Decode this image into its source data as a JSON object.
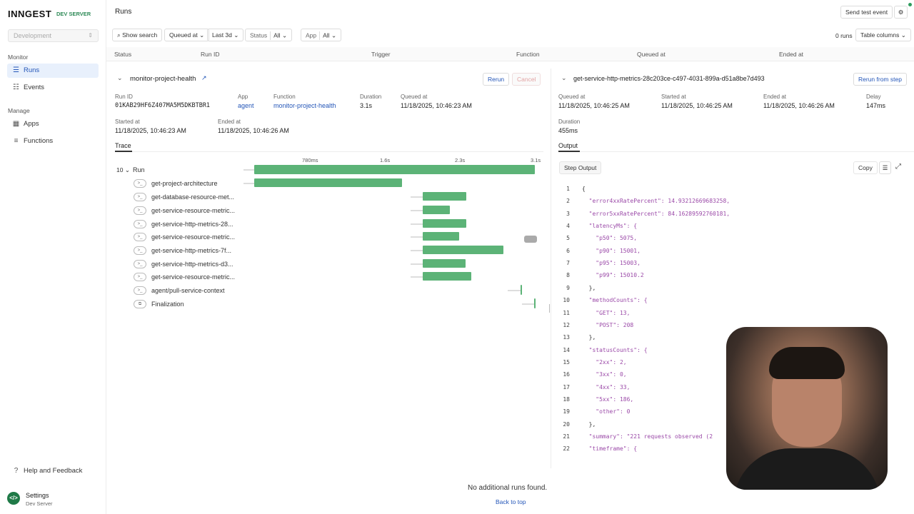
{
  "brand": {
    "logo": "INNGEST",
    "sub": "DEV SERVER"
  },
  "env_select": {
    "value": "Development"
  },
  "sidebar": {
    "monitor_label": "Monitor",
    "manage_label": "Manage",
    "items": [
      {
        "label": "Runs",
        "icon": "list-icon"
      },
      {
        "label": "Events",
        "icon": "events-icon"
      },
      {
        "label": "Apps",
        "icon": "apps-icon"
      },
      {
        "label": "Functions",
        "icon": "functions-icon"
      }
    ],
    "help": "Help and Feedback",
    "settings": "Settings",
    "settings_sub": "Dev Server"
  },
  "header": {
    "title": "Runs",
    "send_test_event": "Send test event"
  },
  "filters": {
    "show_search": "Show search",
    "queued_at": "Queued at",
    "last": "Last 3d",
    "status_label": "Status",
    "status_value": "All",
    "app_label": "App",
    "app_value": "All",
    "runs_count": "0 runs",
    "table_columns": "Table columns"
  },
  "columns": [
    "Status",
    "Run ID",
    "Trigger",
    "Function",
    "Queued at",
    "Ended at"
  ],
  "run": {
    "function_name": "monitor-project-health",
    "rerun": "Rerun",
    "cancel": "Cancel",
    "run_id_label": "Run ID",
    "run_id": "01KAB29HF6Z407MA5M5DKBTBR1",
    "app_label": "App",
    "app": "agent",
    "function_label": "Function",
    "function": "monitor-project-health",
    "duration_label": "Duration",
    "duration": "3.1s",
    "queued_label": "Queued at",
    "queued": "11/18/2025, 10:46:23 AM",
    "started_label": "Started at",
    "started": "11/18/2025, 10:46:23 AM",
    "ended_label": "Ended at",
    "ended": "11/18/2025, 10:46:26 AM"
  },
  "trace": {
    "tab": "Trace",
    "ticks": [
      "780ms",
      "1.6s",
      "2.3s",
      "3.1s"
    ],
    "run_count": "10",
    "run_label": "Run",
    "steps": [
      "get-project-architecture",
      "get-database-resource-met...",
      "get-service-resource-metric...",
      "get-service-http-metrics-28...",
      "get-service-resource-metric...",
      "get-service-http-metrics-7f...",
      "get-service-http-metrics-d3...",
      "get-service-resource-metric...",
      "agent/pull-service-context",
      "Finalization"
    ]
  },
  "step": {
    "title": "get-service-http-metrics-28c203ce-c497-4031-899a-d51a8be7d493",
    "rerun_from_step": "Rerun from step",
    "queued_label": "Queued at",
    "queued": "11/18/2025, 10:46:25 AM",
    "started_label": "Started at",
    "started": "11/18/2025, 10:46:25 AM",
    "ended_label": "Ended at",
    "ended": "11/18/2025, 10:46:26 AM",
    "delay_label": "Delay",
    "delay": "147ms",
    "duration_label": "Duration",
    "duration": "455ms",
    "output_tab": "Output",
    "step_output": "Step Output",
    "copy": "Copy"
  },
  "code": [
    "{",
    "  \"error4xxRatePercent\": 14.93212669683258,",
    "  \"error5xxRatePercent\": 84.16289592760181,",
    "  \"latencyMs\": {",
    "    \"p50\": 5075,",
    "    \"p90\": 15001,",
    "    \"p95\": 15003,",
    "    \"p99\": 15010.2",
    "  },",
    "  \"methodCounts\": {",
    "    \"GET\": 13,",
    "    \"POST\": 208",
    "  },",
    "  \"statusCounts\": {",
    "    \"2xx\": 2,",
    "    \"3xx\": 0,",
    "    \"4xx\": 33,",
    "    \"5xx\": 186,",
    "    \"other\": 0",
    "  },",
    "  \"summary\": \"221 requests observed (2",
    "  \"timeframe\": {"
  ],
  "footer": {
    "message": "No additional runs found.",
    "back": "Back to top"
  }
}
